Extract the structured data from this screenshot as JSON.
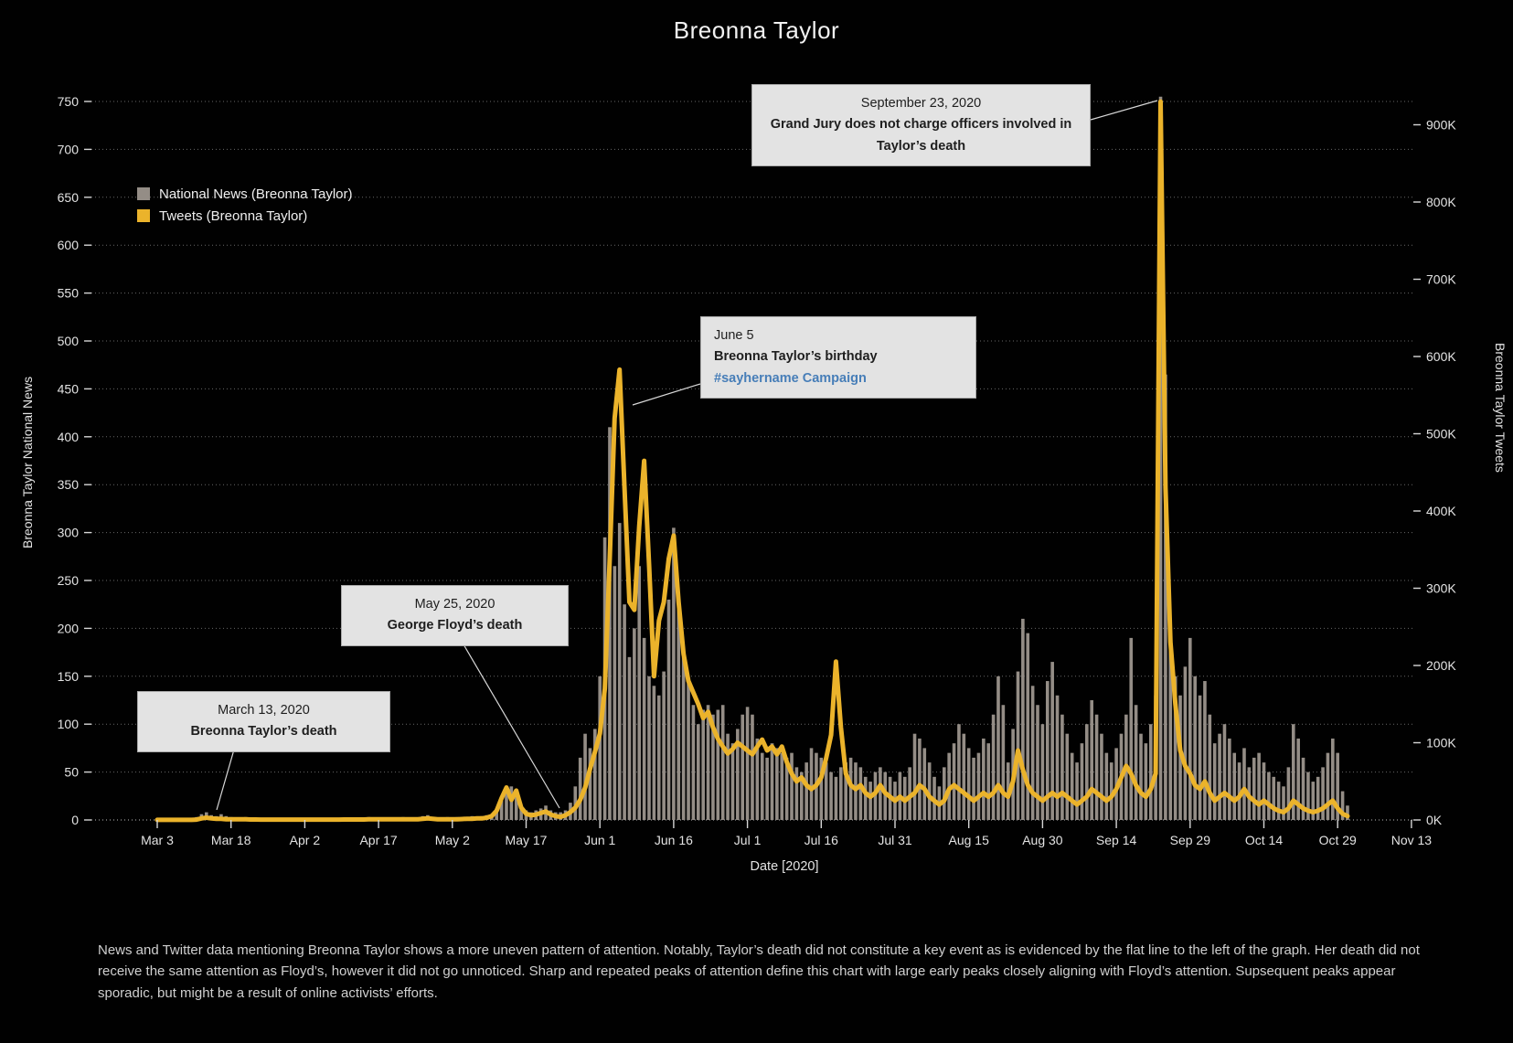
{
  "title": "Breonna Taylor",
  "legend": {
    "items": [
      {
        "label": "National News (Breonna Taylor)",
        "color": "#948d86"
      },
      {
        "label": "Tweets (Breonna Taylor)",
        "color": "#ebb32b"
      }
    ]
  },
  "annotations": [
    {
      "id": "taylor-death",
      "line1": "March 13, 2020",
      "line2": "Breonna Taylor’s death"
    },
    {
      "id": "floyd-death",
      "line1": "May 25, 2020",
      "line2": "George Floyd’s death"
    },
    {
      "id": "birthday",
      "line1": "June 5",
      "line2": "Breonna Taylor’s birthday",
      "line3": "#sayhername Campaign"
    },
    {
      "id": "grand-jury",
      "line1": "September 23, 2020",
      "line2": "Grand Jury does not charge officers involved in Taylor’s death"
    }
  ],
  "caption": "News and Twitter data mentioning Breonna Taylor shows a more uneven pattern of attention. Notably, Taylor’s death did not constitute a key event as is evidenced by the flat line to the left of the graph. Her death did not receive the same attention as Floyd’s, however it did not go unnoticed. Sharp and repeated peaks of attention define this chart with large early peaks closely aligning with Floyd’s attention. Supsequent peaks appear sporadic, but might be a result of online activists’ efforts.",
  "colors": {
    "background": "#010101",
    "bars": "#948d86",
    "line": "#ebb32b",
    "gridline": "#8a8a8a",
    "annotation_bg": "#e3e3e3",
    "hashtag_blue": "#477eb8",
    "text": "#e3e3e3"
  },
  "chart_data": {
    "type": "bar+line dual-axis, daily values",
    "title": "Breonna Taylor",
    "start_date": "2020-03-03",
    "x_axis_label": "Date [2020]",
    "x_tick_labels": [
      "Mar 3",
      "Mar 18",
      "Apr 2",
      "Apr 17",
      "May 2",
      "May 17",
      "Jun 1",
      "Jun 16",
      "Jul 1",
      "Jul 16",
      "Jul 31",
      "Aug 15",
      "Aug 30",
      "Sep 14",
      "Sep 29",
      "Oct 14",
      "Oct 29",
      "Nov 13"
    ],
    "x_tick_interval_days": 15,
    "grid": "dotted horizontal lines every 50 left-axis units",
    "legend_position": "top-left inside plot",
    "left_axis": {
      "title": "Breonna Taylor National News",
      "min": 0,
      "max": 750,
      "tick_step": 50,
      "tick_labels": [
        "0",
        "50",
        "100",
        "150",
        "200",
        "250",
        "300",
        "350",
        "400",
        "450",
        "500",
        "550",
        "600",
        "650",
        "700",
        "750"
      ]
    },
    "right_axis": {
      "title": "Breonna Taylor Tweets",
      "min": 0,
      "max": 900000,
      "tick_step": 100000,
      "tick_labels": [
        "0K",
        "100K",
        "200K",
        "300K",
        "400K",
        "500K",
        "600K",
        "700K",
        "800K",
        "900K"
      ]
    },
    "key_points": [
      {
        "date": "2020-03-13",
        "note": "Breonna Taylor's death; news and tweets remain near zero"
      },
      {
        "date": "2020-05-25",
        "note": "George Floyd's death; attention begins rising"
      },
      {
        "date": "2020-06-05",
        "note": "Taylor's birthday / #sayhername; tweets peak ~585K, news ~410 on Jun 3"
      },
      {
        "date": "2020-09-23",
        "note": "Grand Jury decision; news ~755, tweets ~930K"
      }
    ],
    "series": [
      {
        "name": "National News (Breonna Taylor)",
        "type": "bar",
        "axis": "left",
        "color": "#948d86",
        "daily_values": [
          0,
          0,
          0,
          0,
          0,
          0,
          0,
          0,
          3,
          6,
          8,
          5,
          4,
          6,
          4,
          3,
          2,
          2,
          3,
          2,
          2,
          1,
          2,
          1,
          1,
          2,
          1,
          1,
          2,
          2,
          1,
          2,
          1,
          1,
          2,
          1,
          1,
          2,
          2,
          1,
          2,
          1,
          1,
          3,
          2,
          1,
          2,
          1,
          1,
          2,
          3,
          2,
          1,
          2,
          4,
          5,
          3,
          2,
          2,
          3,
          2,
          3,
          2,
          3,
          4,
          3,
          4,
          5,
          6,
          12,
          20,
          30,
          35,
          25,
          15,
          10,
          8,
          10,
          12,
          15,
          10,
          8,
          8,
          10,
          18,
          35,
          65,
          90,
          75,
          95,
          150,
          295,
          410,
          265,
          310,
          225,
          170,
          200,
          265,
          190,
          150,
          140,
          130,
          155,
          230,
          305,
          230,
          170,
          145,
          120,
          100,
          115,
          120,
          110,
          115,
          120,
          90,
          80,
          95,
          110,
          118,
          110,
          85,
          70,
          65,
          80,
          75,
          70,
          65,
          70,
          55,
          50,
          60,
          75,
          70,
          65,
          60,
          50,
          45,
          55,
          60,
          65,
          60,
          55,
          45,
          40,
          50,
          55,
          50,
          45,
          40,
          50,
          45,
          55,
          90,
          85,
          75,
          60,
          45,
          35,
          55,
          70,
          80,
          100,
          90,
          75,
          65,
          70,
          85,
          80,
          110,
          150,
          120,
          60,
          95,
          155,
          210,
          195,
          140,
          120,
          100,
          145,
          165,
          130,
          110,
          90,
          70,
          60,
          80,
          100,
          125,
          110,
          90,
          70,
          60,
          75,
          90,
          110,
          190,
          120,
          90,
          80,
          100,
          130,
          755,
          465,
          185,
          150,
          130,
          160,
          190,
          150,
          130,
          145,
          110,
          80,
          90,
          100,
          85,
          70,
          60,
          75,
          55,
          65,
          70,
          60,
          50,
          45,
          40,
          35,
          55,
          100,
          85,
          65,
          50,
          40,
          45,
          55,
          70,
          85,
          70,
          30,
          15
        ]
      },
      {
        "name": "Tweets (Breonna Taylor)",
        "type": "line",
        "axis": "right",
        "unit": "thousands",
        "color": "#ebb32b",
        "daily_values_k": [
          0.1,
          0.1,
          0.1,
          0.1,
          0.1,
          0.1,
          0.1,
          0.1,
          0.5,
          2,
          3,
          2,
          1.5,
          1.5,
          1,
          1,
          0.8,
          0.8,
          0.8,
          0.6,
          0.6,
          0.5,
          0.5,
          0.5,
          0.5,
          0.5,
          0.5,
          0.5,
          0.5,
          0.5,
          0.5,
          0.5,
          0.5,
          0.5,
          0.5,
          0.5,
          0.5,
          0.5,
          0.6,
          0.6,
          0.6,
          0.6,
          0.6,
          0.8,
          0.8,
          0.8,
          0.8,
          0.8,
          0.8,
          1,
          1,
          1,
          1,
          1,
          1.5,
          2,
          1.5,
          1,
          1,
          1,
          1,
          1,
          1.2,
          1.5,
          1.5,
          2,
          2,
          3,
          5,
          12,
          28,
          42,
          26,
          38,
          16,
          8,
          6,
          7,
          9,
          11,
          7,
          5,
          4,
          6,
          10,
          16,
          26,
          42,
          66,
          88,
          112,
          170,
          340,
          520,
          583,
          430,
          282,
          272,
          380,
          465,
          330,
          186,
          258,
          282,
          338,
          368,
          282,
          215,
          180,
          165,
          150,
          132,
          140,
          120,
          105,
          95,
          86,
          92,
          100,
          95,
          90,
          85,
          95,
          104,
          90,
          95,
          85,
          95,
          75,
          60,
          50,
          55,
          45,
          40,
          45,
          55,
          80,
          110,
          205,
          120,
          60,
          45,
          40,
          45,
          35,
          30,
          35,
          45,
          35,
          30,
          25,
          30,
          25,
          30,
          35,
          45,
          40,
          30,
          25,
          20,
          25,
          40,
          45,
          40,
          35,
          30,
          25,
          30,
          35,
          30,
          35,
          45,
          35,
          30,
          50,
          90,
          65,
          45,
          35,
          30,
          25,
          30,
          35,
          30,
          35,
          30,
          25,
          20,
          25,
          30,
          40,
          35,
          30,
          25,
          30,
          40,
          55,
          70,
          60,
          45,
          35,
          30,
          40,
          60,
          930,
          430,
          230,
          150,
          90,
          70,
          60,
          45,
          40,
          50,
          35,
          25,
          30,
          35,
          30,
          25,
          30,
          40,
          30,
          25,
          20,
          25,
          20,
          15,
          12,
          10,
          15,
          25,
          20,
          15,
          12,
          10,
          12,
          15,
          20,
          25,
          15,
          8,
          5
        ]
      }
    ]
  }
}
